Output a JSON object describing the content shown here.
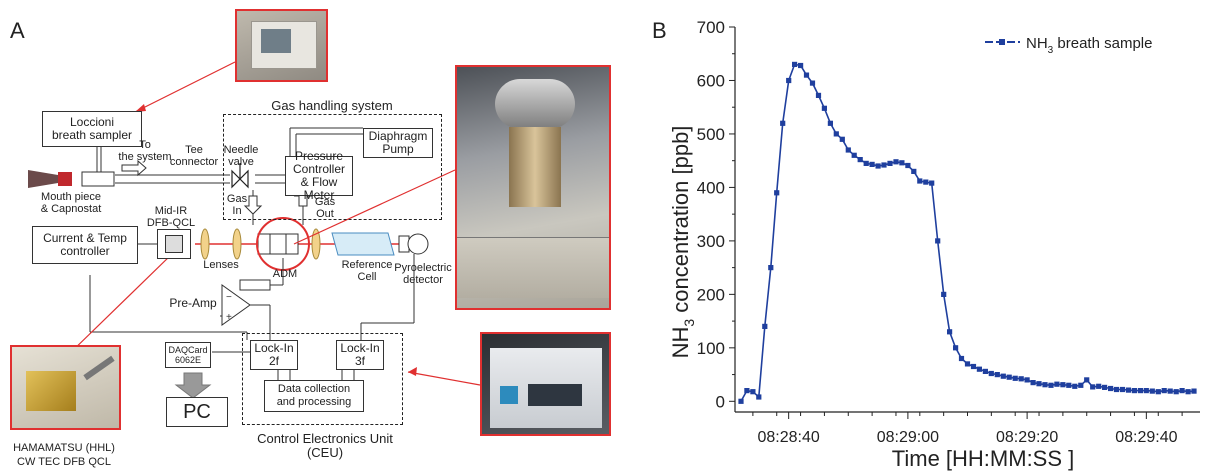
{
  "panel_a": {
    "letter": "A",
    "loccioni": "Loccioni\nbreath sampler",
    "gas_handling_title": "Gas handling system",
    "diaphragm_pump": "Diaphragm\nPump",
    "pressure_controller": "Pressure\nController\n& Flow Meter",
    "to_system": "To\nthe system",
    "tee_connector": "Tee\nconnector",
    "needle_valve": "Needle\nvalve",
    "gas_in": "Gas\nIn",
    "gas_out": "Gas\nOut",
    "mouth_piece": "Mouth piece\n& Capnostat",
    "mid_ir": "Mid-IR\nDFB-QCL",
    "current_temp": "Current & Temp\ncontroller",
    "lenses": "Lenses",
    "adm": "ADM",
    "reference_cell": "Reference\nCell",
    "pyro": "Pyroelectric\ndetector",
    "pre_amp": "Pre-Amp",
    "lockin_2f": "Lock-In\n2f",
    "lockin_3f": "Lock-In\n3f",
    "data_collection": "Data collection\nand processing",
    "daqcard": "DAQCard\n6062E",
    "pc": "PC",
    "ceu": "Control Electronics Unit\n(CEU)",
    "hamamatsu": "HAMAMATSU (HHL)\nCW TEC DFB QCL"
  },
  "colors": {
    "accent_red": "#e03030",
    "series_blue": "#1f3f9e"
  },
  "chart_data": {
    "type": "line",
    "panel_letter": "B",
    "ylabel_main": "NH",
    "ylabel_sub": "3",
    "ylabel_rest": " concentration [ppb]",
    "xlabel": "Time  [HH:MM:SS  ]",
    "legend_main": "NH",
    "legend_sub": "3",
    "legend_rest": " breath sample",
    "legend_position": "top-right",
    "xticks": [
      "08:28:40",
      "08:29:00",
      "08:29:20",
      "08:29:40"
    ],
    "xtick_seconds": [
      40,
      60,
      80,
      100
    ],
    "yticks": [
      0,
      100,
      200,
      300,
      400,
      500,
      600,
      700
    ],
    "xlim_seconds": [
      31,
      109
    ],
    "ylim": [
      -20,
      700
    ],
    "series": [
      {
        "name": "NH3 breath sample",
        "x_seconds": [
          32,
          33,
          34,
          35,
          36,
          37,
          38,
          39,
          40,
          41,
          42,
          43,
          44,
          45,
          46,
          47,
          48,
          49,
          50,
          51,
          52,
          53,
          54,
          55,
          56,
          57,
          58,
          59,
          60,
          61,
          62,
          63,
          64,
          65,
          66,
          67,
          68,
          69,
          70,
          71,
          72,
          73,
          74,
          75,
          76,
          77,
          78,
          79,
          80,
          81,
          82,
          83,
          84,
          85,
          86,
          87,
          88,
          89,
          90,
          91,
          92,
          93,
          94,
          95,
          96,
          97,
          98,
          99,
          100,
          101,
          102,
          103,
          104,
          105,
          106,
          107,
          108
        ],
        "y": [
          0,
          20,
          18,
          8,
          140,
          250,
          390,
          520,
          600,
          630,
          628,
          610,
          595,
          572,
          548,
          520,
          500,
          490,
          470,
          460,
          452,
          445,
          443,
          440,
          442,
          445,
          448,
          446,
          441,
          430,
          412,
          410,
          408,
          300,
          200,
          130,
          100,
          80,
          70,
          65,
          60,
          56,
          52,
          50,
          47,
          45,
          43,
          42,
          40,
          35,
          33,
          31,
          30,
          32,
          31,
          30,
          28,
          30,
          40,
          27,
          28,
          26,
          24,
          22,
          22,
          21,
          20,
          20,
          20,
          19,
          18,
          20,
          19,
          18,
          20,
          18,
          19
        ]
      }
    ]
  }
}
